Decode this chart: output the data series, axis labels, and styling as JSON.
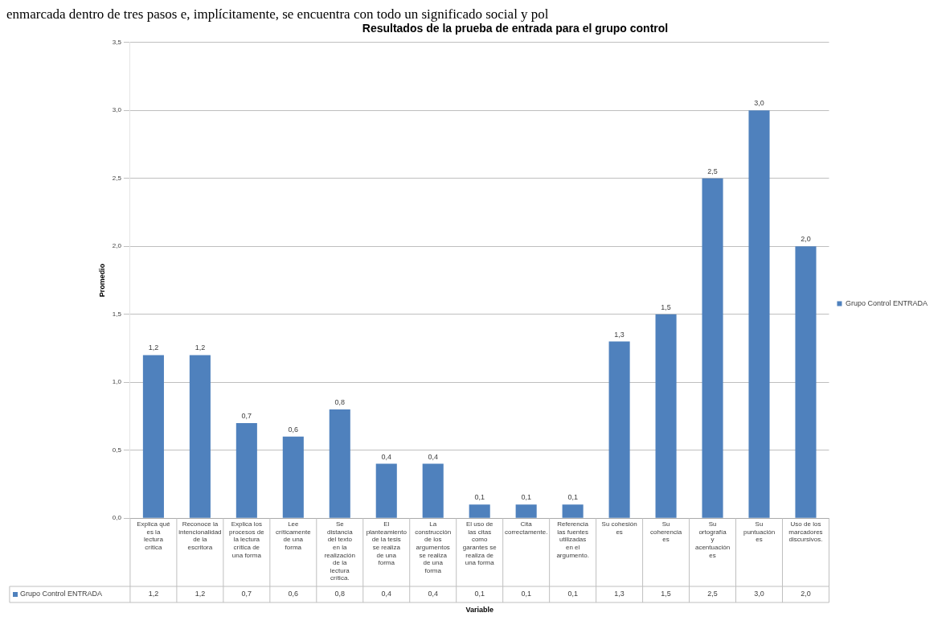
{
  "chart_data": {
    "type": "bar",
    "title": "Resultados de la prueba de entrada para el grupo control",
    "xlabel": "Variable",
    "ylabel": "Promedio",
    "annotations": [
      "enmarcada dentro de tres pasos e, implícitamente, se encuentra con todo un significado social y pol"
    ],
    "categories": [
      "Explica qué es la lectura crítica",
      "Reconoce la intencionalidad de la escritora",
      "Explica los procesos de la lectura crítica de una forma",
      "Lee críticamente de una forma",
      "Se distancia del texto en la realización de la lectura crítica.",
      "El planteamiento de la tesis se realiza de una forma",
      "La construcción de los argumentos se realiza de una forma",
      "El uso de las citas como garantes se realiza de una forma",
      "Cita correctamente.",
      "Referencia las fuentes utilizadas en el argumento.",
      "Su cohesión es",
      "Su coherencia es",
      "Su ortografía y acentuación es",
      "Su puntuación es",
      "Uso de los marcadores discursivos."
    ],
    "series": [
      {
        "name": "Grupo Control ENTRADA",
        "color": "#4f81bd",
        "values": [
          1.2,
          1.2,
          0.7,
          0.6,
          0.8,
          0.4,
          0.4,
          0.1,
          0.1,
          0.1,
          1.3,
          1.5,
          2.5,
          3.0,
          2.0
        ],
        "value_labels": [
          "1,2",
          "1,2",
          "0,7",
          "0,6",
          "0,8",
          "0,4",
          "0,4",
          "0,1",
          "0,1",
          "0,1",
          "1,3",
          "1,5",
          "2,5",
          "3,0",
          "2,0"
        ]
      }
    ],
    "ylim": [
      0,
      3.5
    ],
    "yticks": [
      {
        "value": 0,
        "label": "0,0"
      },
      {
        "value": 0.5,
        "label": "0,5"
      },
      {
        "value": 1,
        "label": "1,0"
      },
      {
        "value": 1.5,
        "label": "1,5"
      },
      {
        "value": 2,
        "label": "2,0"
      },
      {
        "value": 2.5,
        "label": "2,5"
      },
      {
        "value": 3,
        "label": "3,0"
      },
      {
        "value": 3.5,
        "label": "3,5"
      }
    ],
    "grid": "y",
    "legend": "right"
  }
}
